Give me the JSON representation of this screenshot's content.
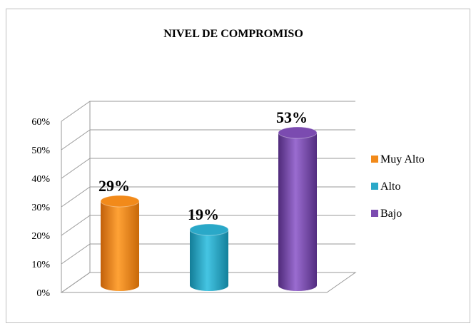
{
  "chart_data": {
    "type": "bar",
    "style": "3d-cylinder",
    "title": "NIVEL DE COMPROMISO",
    "categories": [
      "Muy Alto",
      "Alto",
      "Bajo"
    ],
    "values": [
      29,
      19,
      53
    ],
    "data_labels": [
      "29%",
      "19%",
      "53%"
    ],
    "ylim": [
      0,
      60
    ],
    "yticks": [
      0,
      10,
      20,
      30,
      40,
      50,
      60
    ],
    "ytick_labels": [
      "0%",
      "10%",
      "20%",
      "30%",
      "40%",
      "50%",
      "60%"
    ],
    "grid": true,
    "legend": {
      "placement": "right",
      "entries": [
        {
          "label": "Muy Alto",
          "color": "#f28a1a"
        },
        {
          "label": "Alto",
          "color": "#2aa8c8"
        },
        {
          "label": "Bajo",
          "color": "#7b4bb0"
        }
      ]
    },
    "colors": [
      "#f28a1a",
      "#2aa8c8",
      "#7b4bb0"
    ]
  }
}
